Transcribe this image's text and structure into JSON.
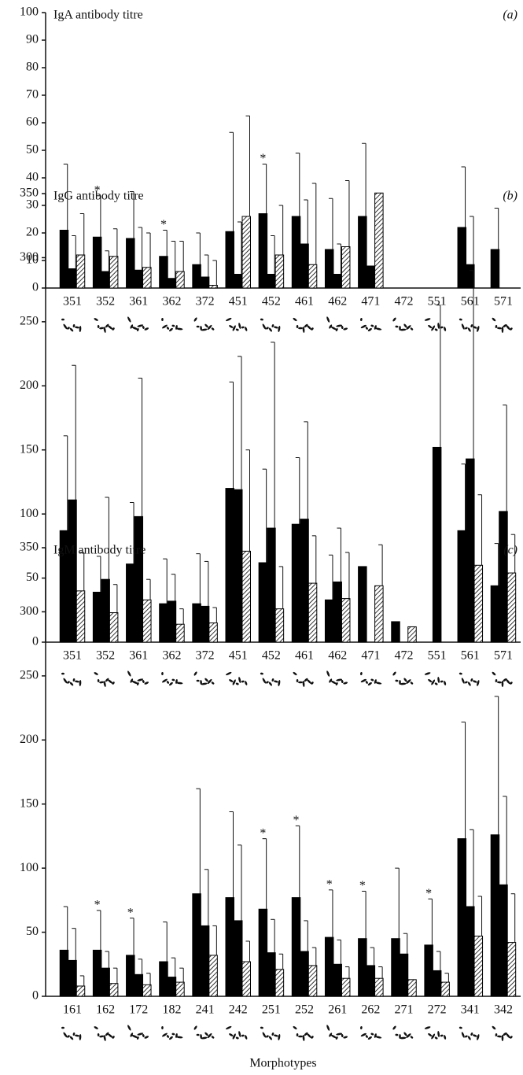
{
  "chart_data": [
    {
      "type": "bar",
      "title": "IgA antibody titre",
      "panel_label": "(a)",
      "categories": [
        "351",
        "352",
        "361",
        "362",
        "372",
        "451",
        "452",
        "461",
        "462",
        "471",
        "472",
        "551",
        "561",
        "571"
      ],
      "ylim": [
        0,
        100
      ],
      "yticks": [
        0,
        10,
        20,
        30,
        40,
        50,
        60,
        70,
        80,
        90,
        100
      ],
      "series": [
        {
          "color": "#000000",
          "values": [
            21,
            18.5,
            18,
            11.5,
            8.5,
            20.5,
            27,
            26,
            14,
            26,
            null,
            null,
            22,
            14
          ],
          "errors": [
            24,
            15,
            17,
            9.5,
            11.5,
            36,
            18,
            23,
            18.5,
            26.5,
            null,
            null,
            22,
            15
          ]
        },
        {
          "color": "#000000",
          "values": [
            7,
            6,
            6.5,
            3.5,
            4,
            5,
            5,
            16,
            5,
            8,
            null,
            null,
            8.5,
            null
          ],
          "errors": [
            12,
            7.5,
            15.5,
            13.5,
            8,
            19,
            14,
            16,
            11,
            null,
            null,
            null,
            17.5,
            null
          ]
        },
        {
          "color": "#ffffff",
          "hatch": true,
          "values": [
            12,
            11.5,
            7.5,
            6,
            1,
            26,
            12,
            8.5,
            15,
            34.5,
            null,
            null,
            null,
            null
          ],
          "errors": [
            15,
            10,
            12.5,
            11,
            9,
            36.5,
            18,
            29.5,
            24,
            null,
            null,
            null,
            null,
            null
          ]
        }
      ],
      "annotations": [
        {
          "text": "*",
          "category": "352"
        },
        {
          "text": "*",
          "category": "362"
        },
        {
          "text": "*",
          "category": "452"
        }
      ]
    },
    {
      "type": "bar",
      "title": "IgG antibody titre",
      "panel_label": "(b)",
      "categories": [
        "351",
        "352",
        "361",
        "362",
        "372",
        "451",
        "452",
        "461",
        "462",
        "471",
        "472",
        "551",
        "561",
        "571"
      ],
      "ylim": [
        0,
        350
      ],
      "yticks": [
        0,
        50,
        100,
        150,
        200,
        250,
        300,
        350
      ],
      "series": [
        {
          "color": "#000000",
          "values": [
            87,
            39,
            61,
            30,
            30,
            120,
            62,
            92,
            33,
            59,
            16,
            null,
            87,
            44
          ],
          "errors": [
            74,
            28,
            48,
            35,
            39,
            83,
            73,
            52,
            35,
            null,
            null,
            null,
            52,
            33
          ]
        },
        {
          "color": "#000000",
          "values": [
            111,
            49,
            98,
            32,
            28,
            119,
            89,
            96,
            47,
            null,
            null,
            152,
            143,
            102
          ],
          "errors": [
            105,
            64,
            108,
            21,
            35,
            104,
            145,
            76,
            42,
            null,
            null,
            111,
            147,
            83
          ]
        },
        {
          "color": "#ffffff",
          "hatch": true,
          "values": [
            40,
            23,
            33,
            14,
            15,
            71,
            26,
            46,
            34,
            44,
            12,
            null,
            60,
            54
          ],
          "errors": [
            30,
            22,
            16,
            12,
            12,
            79,
            33,
            37,
            36,
            32,
            null,
            null,
            55,
            30
          ]
        }
      ],
      "annotations": []
    },
    {
      "type": "bar",
      "title": "IgM antibody titre",
      "panel_label": "(c)",
      "x_label": "Morphotypes",
      "categories": [
        "161",
        "162",
        "172",
        "182",
        "241",
        "242",
        "251",
        "252",
        "261",
        "262",
        "271",
        "272",
        "341",
        "342"
      ],
      "ylim": [
        0,
        350
      ],
      "yticks": [
        0,
        50,
        100,
        150,
        200,
        250,
        300,
        350
      ],
      "series": [
        {
          "color": "#000000",
          "values": [
            36,
            36,
            32,
            27,
            80,
            77,
            68,
            77,
            46,
            45,
            45,
            40,
            123,
            126
          ],
          "errors": [
            34,
            31,
            29,
            31,
            82,
            67,
            55,
            56,
            37,
            37,
            55,
            36,
            91,
            108
          ]
        },
        {
          "color": "#000000",
          "values": [
            28,
            22,
            17,
            15,
            55,
            59,
            34,
            35,
            25,
            24,
            33,
            20,
            70,
            87
          ],
          "errors": [
            25,
            13,
            12,
            15,
            44,
            59,
            26,
            24,
            19,
            14,
            16,
            15,
            60,
            69
          ]
        },
        {
          "color": "#ffffff",
          "hatch": true,
          "values": [
            8,
            10,
            9,
            11,
            32,
            27,
            21,
            24,
            14,
            14,
            13,
            11,
            47,
            42
          ],
          "errors": [
            8,
            12,
            9,
            11,
            23,
            16,
            12,
            14,
            9,
            9,
            null,
            7,
            31,
            38
          ]
        }
      ],
      "annotations": [
        {
          "text": "*",
          "category": "162"
        },
        {
          "text": "*",
          "category": "172"
        },
        {
          "text": "*",
          "category": "251"
        },
        {
          "text": "*",
          "category": "252"
        },
        {
          "text": "*",
          "category": "261"
        },
        {
          "text": "*",
          "category": "262"
        },
        {
          "text": "*",
          "category": "272"
        }
      ]
    }
  ]
}
